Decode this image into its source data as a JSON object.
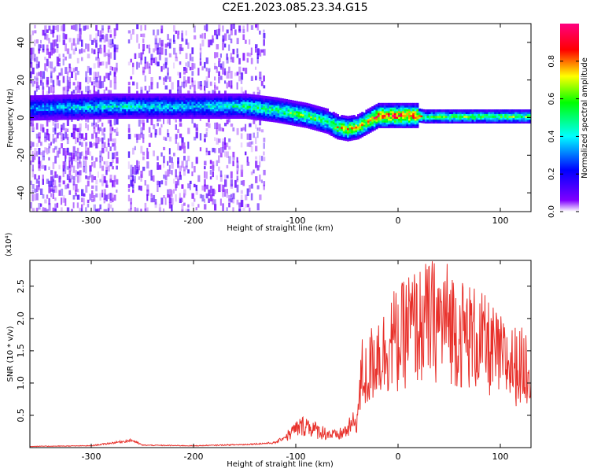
{
  "title": "C2E1.2023.085.23.34.G15",
  "chart_data": [
    {
      "type": "heatmap",
      "xlabel": "Height of straight line (km)",
      "ylabel": "Frequency (Hz)",
      "xlim": [
        -360,
        130
      ],
      "ylim": [
        -50,
        50
      ],
      "xticks": [
        -300,
        -200,
        -100,
        0,
        100
      ],
      "yticks": [
        -40,
        -20,
        0,
        20,
        40
      ],
      "colorbar": {
        "label": "Normalized spectral amplitude",
        "range": [
          0.0,
          1.0
        ],
        "ticks": [
          0.0,
          0.2,
          0.4,
          0.6,
          0.8
        ],
        "colormap": [
          "#ffffff",
          "#8000ff",
          "#0000ff",
          "#00ffff",
          "#00ff00",
          "#ffff00",
          "#ff0000",
          "#ff0080"
        ]
      },
      "ridge": {
        "x": [
          -360,
          -280,
          -200,
          -150,
          -120,
          -90,
          -70,
          -60,
          -50,
          -40,
          -30,
          -20,
          0,
          20,
          25,
          60,
          100,
          130
        ],
        "y": [
          5,
          6,
          6,
          6,
          4,
          1,
          -2,
          -5,
          -6,
          -5,
          -2,
          1,
          1,
          1,
          0.5,
          0.5,
          0.5,
          0.5
        ],
        "amplitude": [
          0.35,
          0.45,
          0.4,
          0.5,
          0.55,
          0.6,
          0.55,
          0.7,
          0.75,
          0.7,
          0.75,
          0.9,
          0.92,
          0.9,
          0.55,
          0.6,
          0.6,
          0.6
        ]
      }
    },
    {
      "type": "line",
      "xlabel": "Height of straight line (km)",
      "ylabel": "SNR (10 * v/v)",
      "yscale_note": "(x10⁴)",
      "xlim": [
        -360,
        130
      ],
      "ylim": [
        0,
        2.9
      ],
      "xticks": [
        -300,
        -200,
        -100,
        0,
        100
      ],
      "yticks": [
        "0.5",
        "1.0",
        "1.5",
        "2.0",
        "2.5"
      ],
      "color": "#e8302a",
      "series": [
        {
          "x": [
            -360,
            -300,
            -260,
            -250,
            -200,
            -150,
            -120,
            -110,
            -100,
            -90,
            -80,
            -70,
            -60,
            -50,
            -40,
            -35,
            -30,
            -25,
            -20,
            -15,
            -10,
            -5,
            0,
            10,
            20,
            30,
            40,
            50,
            60,
            70,
            80,
            90,
            100,
            110,
            120,
            130
          ],
          "y": [
            0.02,
            0.03,
            0.12,
            0.04,
            0.03,
            0.05,
            0.08,
            0.18,
            0.32,
            0.4,
            0.3,
            0.25,
            0.2,
            0.3,
            0.5,
            1.3,
            1.2,
            1.5,
            1.7,
            1.6,
            1.8,
            1.9,
            1.8,
            2.1,
            2.1,
            2.2,
            2.2,
            2.2,
            2.0,
            1.95,
            1.85,
            1.7,
            1.55,
            1.45,
            1.4,
            1.45
          ]
        }
      ]
    }
  ]
}
